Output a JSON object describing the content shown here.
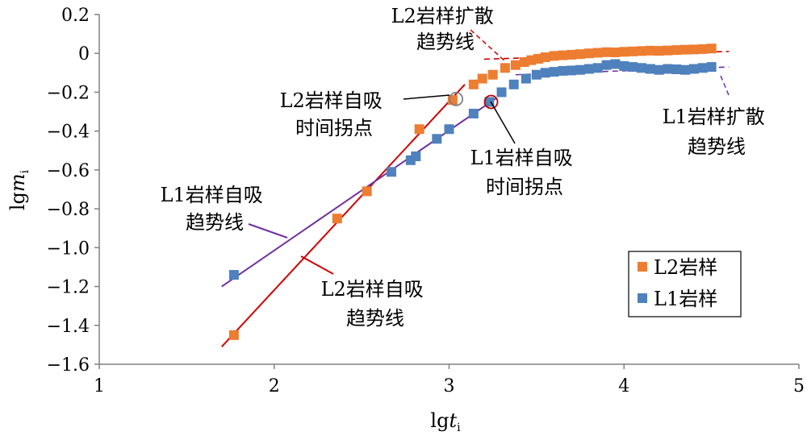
{
  "chart_data": {
    "type": "scatter",
    "xlabel": {
      "base": "lg",
      "var": "t",
      "sub": "i"
    },
    "ylabel": {
      "base": "lg",
      "var": "m",
      "sub": "i"
    },
    "xlim": [
      1,
      5
    ],
    "ylim": [
      -1.6,
      0.2
    ],
    "xticks": [
      "1",
      "2",
      "3",
      "4",
      "5"
    ],
    "yticks": [
      "0.2",
      "0",
      "−0.2",
      "−0.4",
      "−0.6",
      "−0.8",
      "−1.0",
      "−1.2",
      "−1.4",
      "−1.6"
    ],
    "grid": false,
    "legend_position": "bottom-right",
    "series": [
      {
        "name": "L2岩样",
        "color": "#ED7D31",
        "points": [
          [
            1.77,
            -1.45
          ],
          [
            2.36,
            -0.85
          ],
          [
            2.53,
            -0.71
          ],
          [
            2.83,
            -0.39
          ],
          [
            3.02,
            -0.24
          ],
          [
            3.14,
            -0.16
          ],
          [
            3.19,
            -0.13
          ],
          [
            3.25,
            -0.11
          ],
          [
            3.32,
            -0.075
          ],
          [
            3.38,
            -0.06
          ],
          [
            3.43,
            -0.045
          ],
          [
            3.47,
            -0.035
          ],
          [
            3.51,
            -0.028
          ],
          [
            3.55,
            -0.02
          ],
          [
            3.6,
            -0.013
          ],
          [
            3.65,
            -0.01
          ],
          [
            3.7,
            -0.007
          ],
          [
            3.75,
            -0.004
          ],
          [
            3.8,
            0.0
          ],
          [
            3.85,
            0.003
          ],
          [
            3.9,
            0.006
          ],
          [
            3.95,
            0.005
          ],
          [
            4.0,
            0.008
          ],
          [
            4.05,
            0.01
          ],
          [
            4.1,
            0.012
          ],
          [
            4.15,
            0.014
          ],
          [
            4.2,
            0.013
          ],
          [
            4.25,
            0.015
          ],
          [
            4.3,
            0.017
          ],
          [
            4.35,
            0.019
          ],
          [
            4.4,
            0.02
          ],
          [
            4.45,
            0.022
          ],
          [
            4.5,
            0.025
          ]
        ]
      },
      {
        "name": "L1岩样",
        "color": "#4F81BD",
        "points": [
          [
            1.77,
            -1.14
          ],
          [
            2.67,
            -0.61
          ],
          [
            2.78,
            -0.55
          ],
          [
            2.81,
            -0.53
          ],
          [
            2.93,
            -0.44
          ],
          [
            3.0,
            -0.39
          ],
          [
            3.14,
            -0.31
          ],
          [
            3.23,
            -0.25
          ],
          [
            3.3,
            -0.2
          ],
          [
            3.37,
            -0.16
          ],
          [
            3.44,
            -0.13
          ],
          [
            3.5,
            -0.11
          ],
          [
            3.55,
            -0.1
          ],
          [
            3.6,
            -0.095
          ],
          [
            3.65,
            -0.09
          ],
          [
            3.7,
            -0.088
          ],
          [
            3.75,
            -0.085
          ],
          [
            3.8,
            -0.08
          ],
          [
            3.85,
            -0.075
          ],
          [
            3.9,
            -0.06
          ],
          [
            3.95,
            -0.055
          ],
          [
            4.0,
            -0.065
          ],
          [
            4.05,
            -0.07
          ],
          [
            4.1,
            -0.075
          ],
          [
            4.15,
            -0.08
          ],
          [
            4.2,
            -0.085
          ],
          [
            4.25,
            -0.08
          ],
          [
            4.3,
            -0.082
          ],
          [
            4.35,
            -0.085
          ],
          [
            4.4,
            -0.08
          ],
          [
            4.45,
            -0.075
          ],
          [
            4.5,
            -0.07
          ]
        ]
      }
    ],
    "trend_lines": [
      {
        "color": "#D00000",
        "style": "solid",
        "x": [
          1.7,
          3.09
        ],
        "y": [
          -1.51,
          -0.16
        ]
      },
      {
        "color": "#7030A0",
        "style": "solid",
        "x": [
          1.7,
          3.27
        ],
        "y": [
          -1.2,
          -0.23
        ]
      },
      {
        "color": "#D00000",
        "style": "dashed",
        "x": [
          3.2,
          4.6
        ],
        "y": [
          -0.03,
          0.01
        ]
      },
      {
        "color": "#7030A0",
        "style": "dashed",
        "x": [
          3.38,
          4.6
        ],
        "y": [
          -0.11,
          -0.07
        ]
      }
    ],
    "turning_points": [
      {
        "color": "#7F7F7F",
        "x": 3.04,
        "y": -0.235
      },
      {
        "color": "#C00000",
        "x": 3.24,
        "y": -0.25
      }
    ],
    "annotations": [
      {
        "id": "l2-diffusion",
        "lines": [
          "L2岩样扩散",
          "趋势线"
        ]
      },
      {
        "id": "l2-turning",
        "lines": [
          "L2岩样自吸",
          "时间拐点"
        ]
      },
      {
        "id": "l1-turning",
        "lines": [
          "L1岩样自吸",
          "时间拐点"
        ]
      },
      {
        "id": "l1-diffusion",
        "lines": [
          "L1岩样扩散",
          "趋势线"
        ]
      },
      {
        "id": "l1-imbibition",
        "lines": [
          "L1岩样自吸",
          "趋势线"
        ]
      },
      {
        "id": "l2-imbibition",
        "lines": [
          "L2岩样自吸",
          "趋势线"
        ]
      }
    ]
  }
}
